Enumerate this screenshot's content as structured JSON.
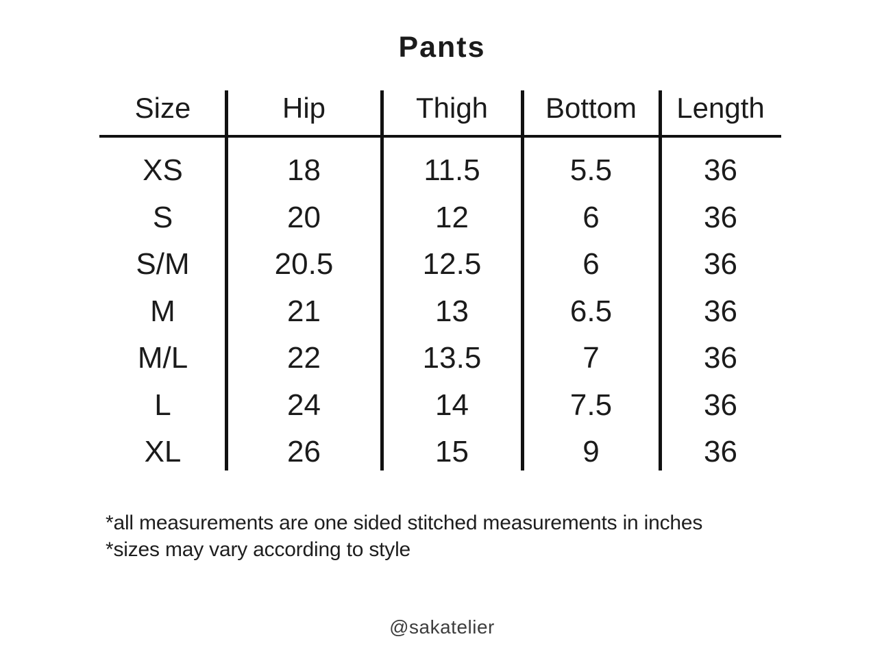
{
  "title": "Pants",
  "table": {
    "columns": [
      "Size",
      "Hip",
      "Thigh",
      "Bottom",
      "Length"
    ],
    "rows": [
      [
        "XS",
        "18",
        "11.5",
        "5.5",
        "36"
      ],
      [
        "S",
        "20",
        "12",
        "6",
        "36"
      ],
      [
        "S/M",
        "20.5",
        "12.5",
        "6",
        "36"
      ],
      [
        "M",
        "21",
        "13",
        "6.5",
        "36"
      ],
      [
        "M/L",
        "22",
        "13.5",
        "7",
        "36"
      ],
      [
        "L",
        "24",
        "14",
        "7.5",
        "36"
      ],
      [
        "XL",
        "26",
        "15",
        "9",
        "36"
      ]
    ]
  },
  "notes": [
    "*all measurements are one sided stitched measurements in inches",
    "*sizes may vary according to style"
  ],
  "credit": "@sakatelier",
  "colors": {
    "text": "#1b1b1b",
    "line": "#111111",
    "background": "#ffffff",
    "credit_text": "#3d3d3d"
  }
}
